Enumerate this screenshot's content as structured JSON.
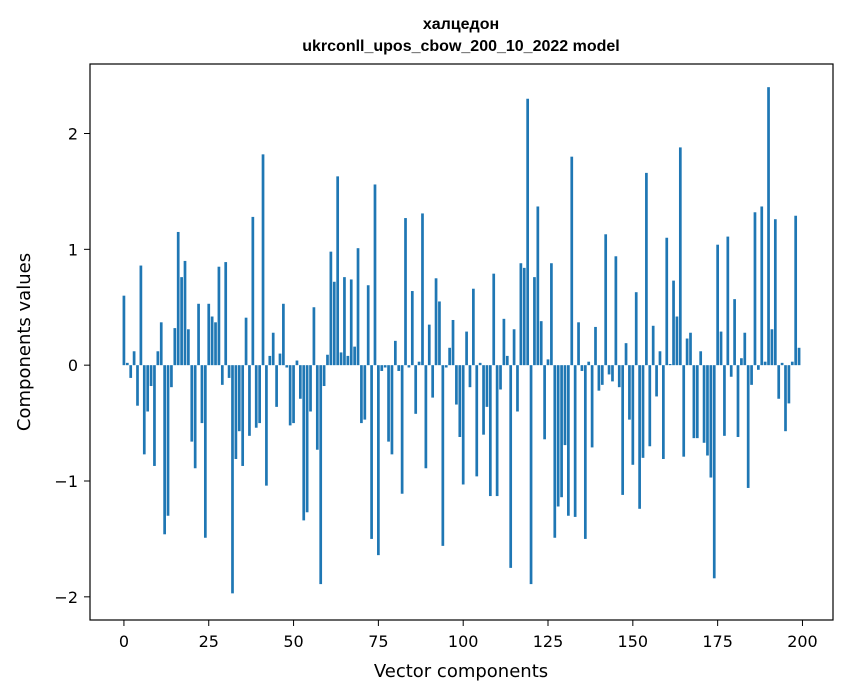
{
  "chart_data": {
    "type": "bar",
    "title_line1": "халцедон",
    "title_line2": "ukrconll_upos_cbow_200_10_2022 model",
    "xlabel": "Vector components",
    "ylabel": "Components values",
    "xlim": [
      -10,
      209
    ],
    "ylim": [
      -2.2,
      2.6
    ],
    "x_ticks": [
      0,
      25,
      50,
      75,
      100,
      125,
      150,
      175,
      200
    ],
    "x_tick_labels": [
      "0",
      "25",
      "50",
      "75",
      "100",
      "125",
      "150",
      "175",
      "200"
    ],
    "y_ticks": [
      -2,
      -1,
      0,
      1,
      2
    ],
    "y_tick_labels": [
      "−2",
      "−1",
      "0",
      "1",
      "2"
    ],
    "bar_color": "#1f77b4",
    "x": [
      0,
      1,
      2,
      3,
      4,
      5,
      6,
      7,
      8,
      9,
      10,
      11,
      12,
      13,
      14,
      15,
      16,
      17,
      18,
      19,
      20,
      21,
      22,
      23,
      24,
      25,
      26,
      27,
      28,
      29,
      30,
      31,
      32,
      33,
      34,
      35,
      36,
      37,
      38,
      39,
      40,
      41,
      42,
      43,
      44,
      45,
      46,
      47,
      48,
      49,
      50,
      51,
      52,
      53,
      54,
      55,
      56,
      57,
      58,
      59,
      60,
      61,
      62,
      63,
      64,
      65,
      66,
      67,
      68,
      69,
      70,
      71,
      72,
      73,
      74,
      75,
      76,
      77,
      78,
      79,
      80,
      81,
      82,
      83,
      84,
      85,
      86,
      87,
      88,
      89,
      90,
      91,
      92,
      93,
      94,
      95,
      96,
      97,
      98,
      99,
      100,
      101,
      102,
      103,
      104,
      105,
      106,
      107,
      108,
      109,
      110,
      111,
      112,
      113,
      114,
      115,
      116,
      117,
      118,
      119,
      120,
      121,
      122,
      123,
      124,
      125,
      126,
      127,
      128,
      129,
      130,
      131,
      132,
      133,
      134,
      135,
      136,
      137,
      138,
      139,
      140,
      141,
      142,
      143,
      144,
      145,
      146,
      147,
      148,
      149,
      150,
      151,
      152,
      153,
      154,
      155,
      156,
      157,
      158,
      159,
      160,
      161,
      162,
      163,
      164,
      165,
      166,
      167,
      168,
      169,
      170,
      171,
      172,
      173,
      174,
      175,
      176,
      177,
      178,
      179,
      180,
      181,
      182,
      183,
      184,
      185,
      186,
      187,
      188,
      189,
      190,
      191,
      192,
      193,
      194,
      195,
      196,
      197,
      198,
      199
    ],
    "values": [
      0.6,
      0.02,
      -0.11,
      0.12,
      -0.35,
      0.86,
      -0.77,
      -0.4,
      -0.18,
      -0.87,
      0.12,
      0.37,
      -1.46,
      -1.3,
      -0.19,
      0.32,
      1.15,
      0.76,
      0.9,
      0.31,
      -0.66,
      -0.89,
      0.53,
      -0.5,
      -1.49,
      0.53,
      0.42,
      0.37,
      0.85,
      -0.17,
      0.89,
      -0.11,
      -1.97,
      -0.81,
      -0.57,
      -0.87,
      0.41,
      -0.61,
      1.28,
      -0.54,
      -0.5,
      1.82,
      -1.04,
      0.08,
      0.28,
      -0.36,
      0.1,
      0.53,
      -0.02,
      -0.52,
      -0.5,
      0.04,
      -0.29,
      -1.34,
      -1.27,
      -0.4,
      0.5,
      -0.73,
      -1.89,
      -0.18,
      0.09,
      0.98,
      0.72,
      1.63,
      0.11,
      0.76,
      0.08,
      0.74,
      0.16,
      1.01,
      -0.5,
      -0.47,
      0.69,
      -1.5,
      1.56,
      -1.64,
      -0.05,
      -0.02,
      -0.66,
      -0.77,
      0.21,
      -0.05,
      -1.11,
      1.27,
      -0.02,
      0.64,
      -0.42,
      0.03,
      1.31,
      -0.89,
      0.35,
      -0.28,
      0.75,
      0.55,
      -1.56,
      -0.02,
      0.15,
      0.39,
      -0.34,
      -0.62,
      -1.03,
      0.29,
      -0.19,
      0.66,
      -0.96,
      0.02,
      -0.6,
      -0.36,
      -1.13,
      0.79,
      -1.13,
      -0.21,
      0.4,
      0.08,
      -1.75,
      0.31,
      -0.4,
      0.88,
      0.84,
      2.3,
      -1.89,
      0.76,
      1.37,
      0.38,
      -0.64,
      0.05,
      0.88,
      -1.49,
      -1.22,
      -1.14,
      -0.69,
      -1.3,
      1.8,
      -1.31,
      0.37,
      -0.05,
      -1.5,
      0.03,
      -0.71,
      0.33,
      -0.22,
      -0.17,
      1.13,
      -0.08,
      -0.14,
      0.94,
      -0.19,
      -1.12,
      0.19,
      -0.47,
      -0.86,
      0.63,
      -1.24,
      -0.8,
      1.66,
      -0.7,
      0.34,
      -0.27,
      0.12,
      -0.81,
      1.1,
      0.01,
      0.73,
      0.42,
      1.88,
      -0.79,
      0.23,
      0.28,
      -0.63,
      -0.63,
      0.12,
      -0.67,
      -0.78,
      -0.97,
      -1.84,
      1.04,
      0.29,
      -0.61,
      1.11,
      -0.1,
      0.57,
      -0.62,
      0.06,
      0.28,
      -1.06,
      -0.17,
      1.32,
      -0.04,
      1.37,
      0.03,
      2.4,
      0.31,
      1.26,
      -0.29,
      0.02,
      -0.57,
      -0.33,
      0.03,
      1.29,
      0.15
    ]
  }
}
